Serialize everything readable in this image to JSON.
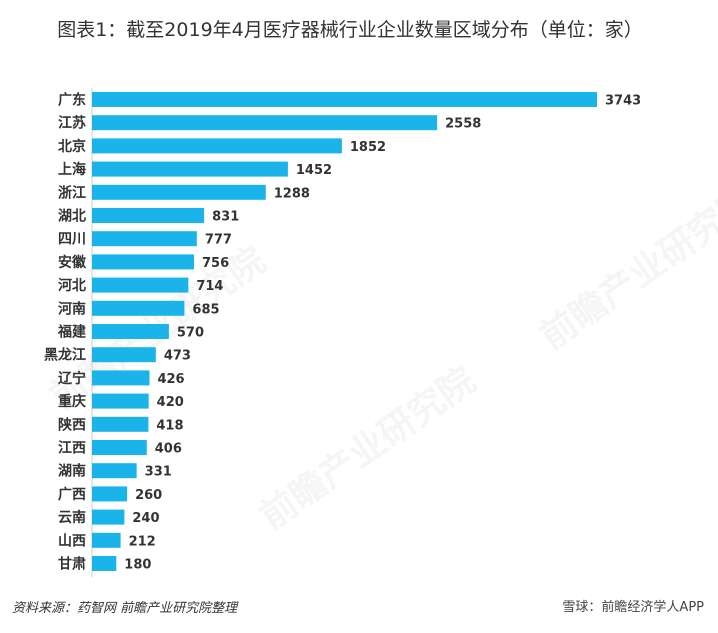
{
  "title": "图表1：截至2019年4月医疗器械行业企业数量区域分布（单位：家）",
  "chart_data": {
    "type": "bar",
    "orientation": "horizontal",
    "title": "图表1：截至2019年4月医疗器械行业企业数量区域分布（单位：家）",
    "categories": [
      "广东",
      "江苏",
      "北京",
      "上海",
      "浙江",
      "湖北",
      "四川",
      "安徽",
      "河北",
      "河南",
      "福建",
      "黑龙江",
      "辽宁",
      "重庆",
      "陕西",
      "江西",
      "湖南",
      "广西",
      "云南",
      "山西",
      "甘肃"
    ],
    "values": [
      3743,
      2558,
      1852,
      1452,
      1288,
      831,
      777,
      756,
      714,
      685,
      570,
      473,
      426,
      420,
      418,
      406,
      331,
      260,
      240,
      212,
      180
    ],
    "xlim": [
      0,
      3743
    ],
    "bar_color": "#1ab4ea",
    "label_color": "#333333",
    "data_labels": true,
    "grid": false
  },
  "footer": {
    "source": "资料来源：药智网 前瞻产业研究院整理",
    "watermark": "雪球：前瞻经济学人APP"
  },
  "background_marks": [
    "前瞻产业研究院",
    "前瞻产业研究院",
    "前瞻产业研究院"
  ]
}
